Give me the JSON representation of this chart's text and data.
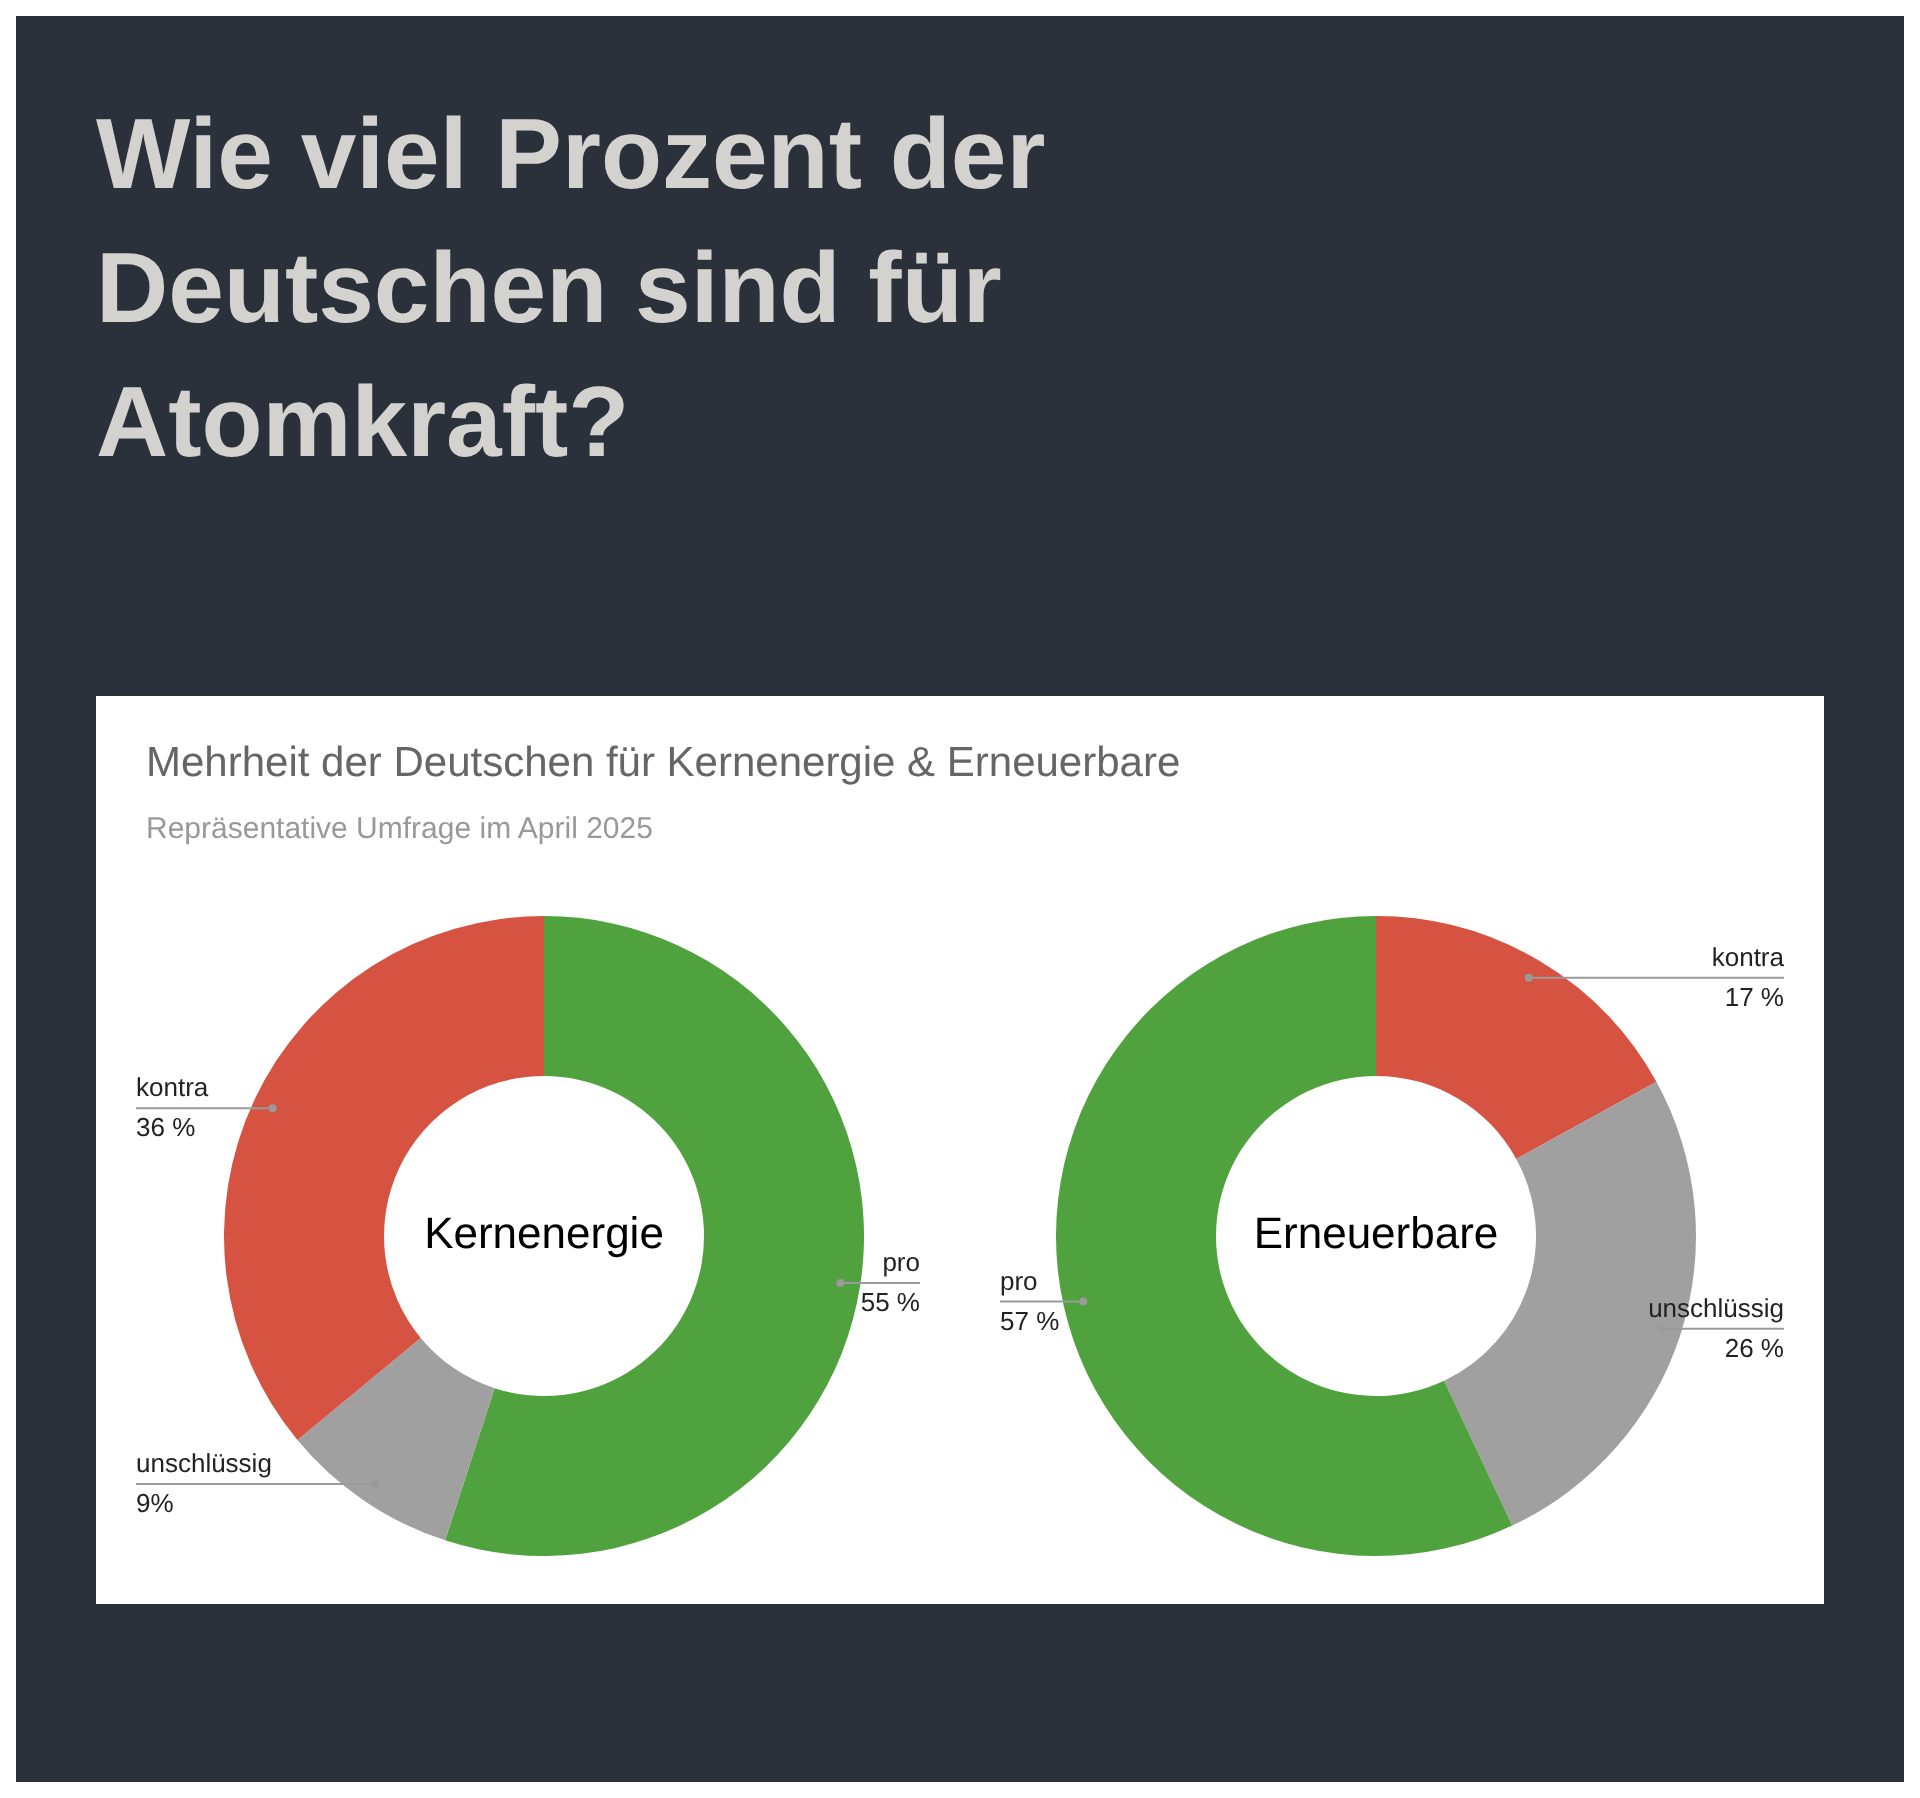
{
  "chart_data": [
    {
      "type": "other",
      "title": "Wie viel Prozent der Deutschen sind für Atomkraft?",
      "subtitle": "Mehrheit der Deutschen für Kernenergie & Erneuerbare",
      "annotations": [
        "Repräsentative Umfrage im April 2025"
      ]
    },
    {
      "type": "donut",
      "title": "Kernenergie",
      "categories": [
        "pro",
        "unschlüssig",
        "kontra"
      ],
      "values": [
        55,
        9,
        36
      ],
      "colors": [
        "#4fa23d",
        "#a0a0a0",
        "#d65241"
      ],
      "value_labels": [
        "55 %",
        "9%",
        "36 %"
      ]
    },
    {
      "type": "donut",
      "title": "Erneuerbare",
      "categories": [
        "kontra",
        "unschlüssig",
        "pro"
      ],
      "values": [
        17,
        26,
        57
      ],
      "colors": [
        "#d65241",
        "#a0a0a0",
        "#4fa23d"
      ],
      "value_labels": [
        "17 %",
        "26 %",
        "57 %"
      ]
    }
  ]
}
